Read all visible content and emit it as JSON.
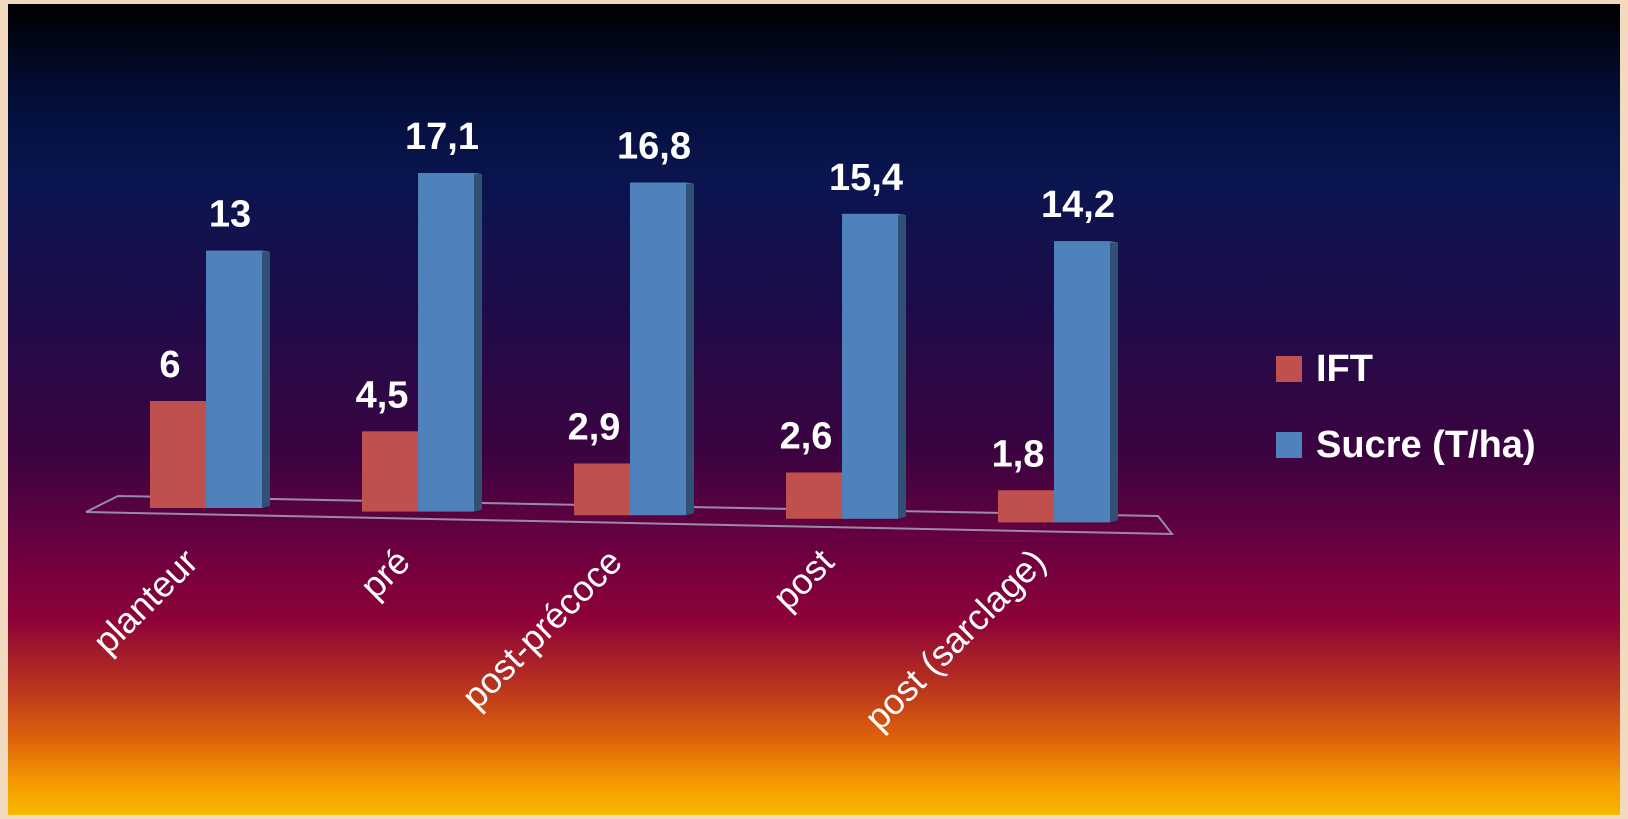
{
  "chart_data": {
    "type": "bar",
    "categories": [
      "planteur",
      "pré",
      "post-précoce",
      "post",
      "post (sarclage)"
    ],
    "series": [
      {
        "name": "IFT",
        "values": [
          6,
          4.5,
          2.9,
          2.6,
          1.8
        ],
        "labels": [
          "6",
          "4,5",
          "2,9",
          "2,6",
          "1,8"
        ],
        "color": "#c0504d"
      },
      {
        "name": "Sucre (T/ha)",
        "values": [
          13,
          17.1,
          16.8,
          15.4,
          14.2
        ],
        "labels": [
          "13",
          "17,1",
          "16,8",
          "15,4",
          "14,2"
        ],
        "color": "#4f81bd"
      }
    ],
    "legend_position": "right",
    "grid": false
  },
  "legend": {
    "items": [
      {
        "label": "IFT",
        "color": "#c0504d"
      },
      {
        "label": "Sucre (T/ha)",
        "color": "#4f81bd"
      }
    ]
  }
}
